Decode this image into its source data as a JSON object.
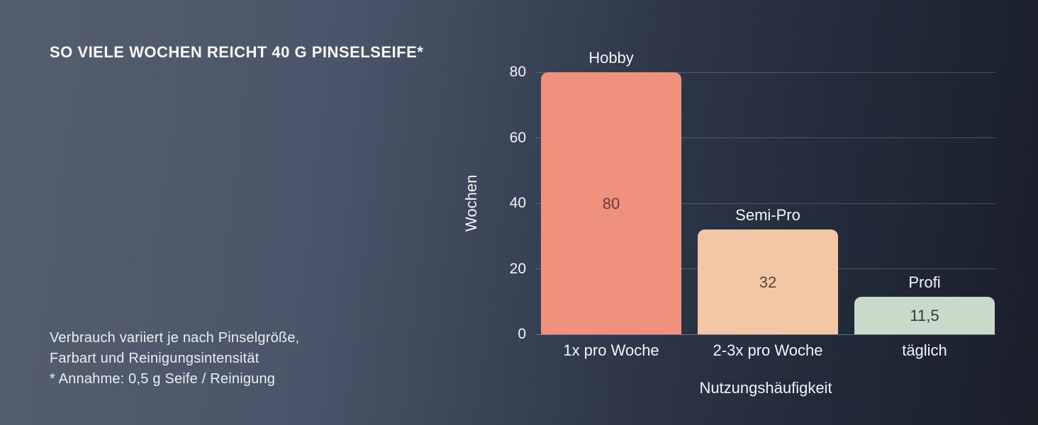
{
  "title": "SO VIELE WOCHEN REICHT 40 G PINSELSEIFE*",
  "footnote": {
    "lines": [
      "Verbrauch variiert je nach Pinselgröße,",
      "Farbart und Reinigungsintensität",
      "* Annahme: 0,5 g Seife / Reinigung"
    ]
  },
  "colors": {
    "background_left": "#545F6E",
    "background_right": "#191E29",
    "text": "#F2F5F7",
    "gridline": "rgba(205,215,225,0.25)"
  },
  "chart_data": {
    "type": "bar",
    "title": "SO VIELE WOCHEN REICHT 40 G PINSELSEIFE*",
    "categories": [
      "1x pro Woche",
      "2-3x pro Woche",
      "täglich"
    ],
    "values": [
      80,
      32,
      11.5
    ],
    "value_labels": [
      "80",
      "32",
      "11,5"
    ],
    "bar_group_labels": [
      "Hobby",
      "Semi-Pro",
      "Profi"
    ],
    "bar_colors": [
      "#F0917E",
      "#F3C7A5",
      "#C8DBCA"
    ],
    "value_text_colors": [
      "#6B3A38",
      "#5A4438",
      "#2F3E37"
    ],
    "xlabel": "Nutzungshäufigkeit",
    "ylabel": "Wochen",
    "ylim": [
      0,
      80
    ],
    "yticks": [
      0,
      20,
      40,
      60,
      80
    ],
    "grid": "horizontal",
    "legend": "none"
  }
}
